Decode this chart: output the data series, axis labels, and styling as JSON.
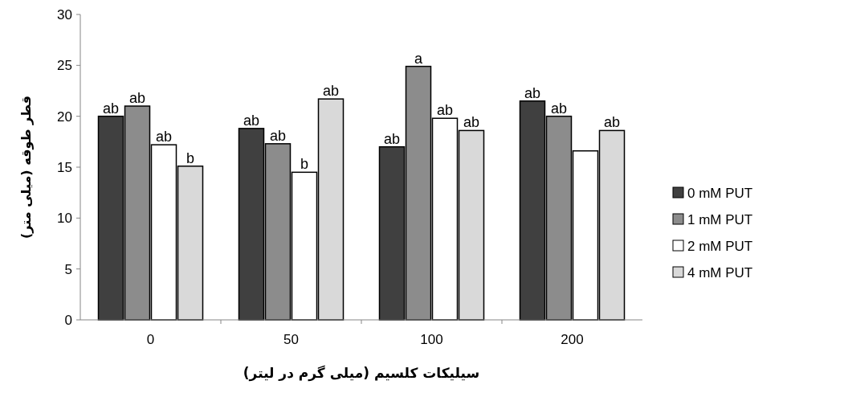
{
  "chart_data": {
    "type": "bar",
    "xlabel": "سیلیکات کلسیم (میلی گرم در لیتر)",
    "ylabel": "قطر طوقه (میلی متر)",
    "categories": [
      "0",
      "50",
      "100",
      "200"
    ],
    "series": [
      {
        "name": "0 mM PUT",
        "color": "#404040",
        "values": [
          20,
          18.8,
          17,
          21.5
        ],
        "value_labels": [
          "ab",
          "ab",
          "ab",
          "ab"
        ]
      },
      {
        "name": "1 mM PUT",
        "color": "#8c8c8c",
        "values": [
          21,
          17.3,
          24.9,
          20
        ],
        "value_labels": [
          "ab",
          "ab",
          "a",
          "ab"
        ]
      },
      {
        "name": "2 mM PUT",
        "color": "#ffffff",
        "values": [
          17.2,
          14.5,
          19.8,
          16.6
        ],
        "value_labels": [
          "ab",
          "b",
          "ab",
          null
        ]
      },
      {
        "name": "4 mM PUT",
        "color": "#d9d9d9",
        "values": [
          15.1,
          21.7,
          18.6,
          18.6
        ],
        "value_labels": [
          "b",
          "ab",
          "ab",
          "ab"
        ]
      }
    ],
    "ylim": [
      0,
      30
    ],
    "yticks": [
      0,
      5,
      10,
      15,
      20,
      25,
      30
    ],
    "grid": false,
    "legend": "right"
  }
}
